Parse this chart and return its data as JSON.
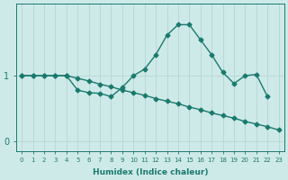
{
  "xlabel": "Humidex (Indice chaleur)",
  "ylabel": "",
  "bg_color": "#ceeae8",
  "grid_color": "#b8d8d6",
  "line_color": "#1a7a6e",
  "x_values": [
    0,
    1,
    2,
    3,
    4,
    5,
    6,
    7,
    8,
    9,
    10,
    11,
    12,
    13,
    14,
    15,
    16,
    17,
    18,
    19,
    20,
    21,
    22,
    23
  ],
  "line1_y": [
    1.0,
    1.0,
    1.0,
    1.0,
    1.0,
    0.78,
    0.74,
    0.73,
    0.68,
    0.82,
    1.0,
    1.1,
    1.32,
    1.62,
    1.78,
    1.78,
    1.55,
    1.32,
    1.05,
    0.88,
    1.0,
    1.02,
    0.68,
    null
  ],
  "line2_y": [
    1.0,
    1.0,
    1.0,
    1.0,
    1.0,
    0.96,
    0.92,
    0.87,
    0.83,
    0.78,
    0.74,
    0.7,
    0.65,
    0.61,
    0.57,
    0.52,
    0.48,
    0.43,
    0.39,
    0.35,
    0.3,
    0.26,
    0.22,
    0.17
  ],
  "yticks": [
    0,
    1
  ],
  "ylim": [
    -0.15,
    2.1
  ],
  "xlim": [
    -0.5,
    23.5
  ]
}
